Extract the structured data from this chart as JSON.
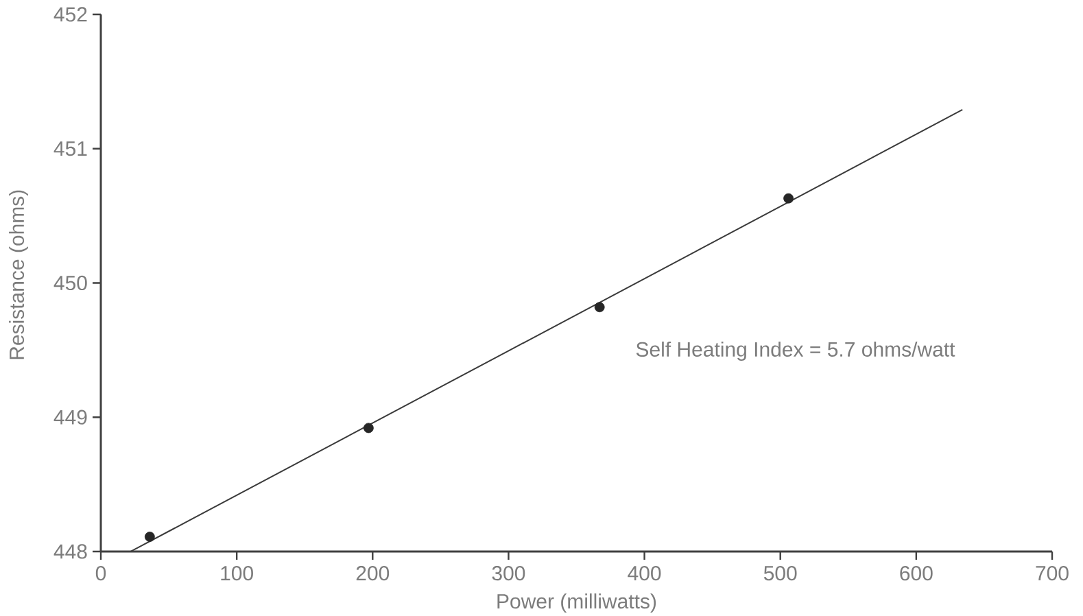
{
  "chart_data": {
    "type": "scatter",
    "xlabel": "Power (milliwatts)",
    "ylabel": "Resistance (ohms)",
    "annotations": [
      "Self Heating Index = 5.7 ohms/watt"
    ],
    "xlim": [
      0,
      700
    ],
    "ylim": [
      448,
      452
    ],
    "xticks": [
      0,
      100,
      200,
      300,
      400,
      500,
      600,
      700
    ],
    "yticks": [
      448,
      449,
      450,
      451,
      452
    ],
    "marker": "circle",
    "series": [
      {
        "color": "#262626",
        "x": [
          36,
          197,
          367,
          506
        ],
        "values": [
          448.11,
          448.92,
          449.82,
          450.63
        ]
      },
      {
        "type": "line",
        "color": "#3a3a3a",
        "marker": "none",
        "x": [
          22,
          634
        ],
        "values": [
          448,
          451.29
        ]
      }
    ]
  }
}
